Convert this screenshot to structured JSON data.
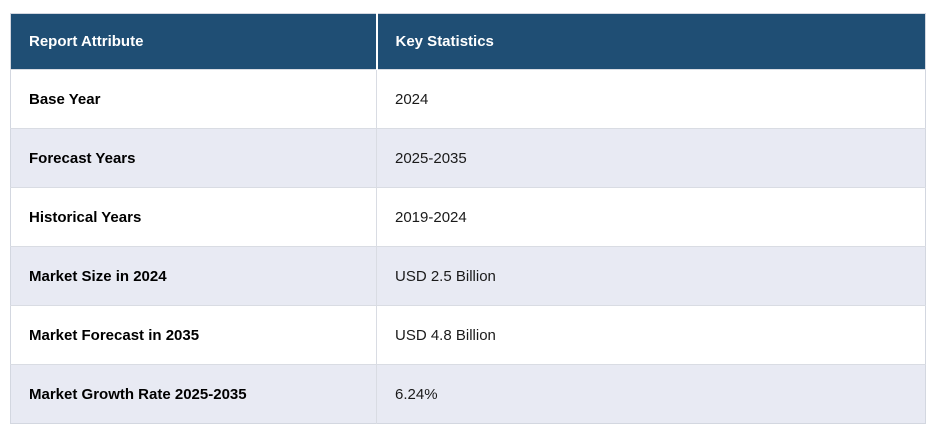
{
  "table": {
    "columns": [
      {
        "label": "Report Attribute"
      },
      {
        "label": "Key Statistics"
      }
    ],
    "rows": [
      {
        "attribute": "Base Year",
        "value": "2024"
      },
      {
        "attribute": "Forecast Years",
        "value": "2025-2035"
      },
      {
        "attribute": "Historical Years",
        "value": "2019-2024"
      },
      {
        "attribute": "Market Size in 2024",
        "value": "USD 2.5 Billion"
      },
      {
        "attribute": "Market Forecast in 2035",
        "value": "USD 4.8 Billion"
      },
      {
        "attribute": "Market Growth Rate 2025-2035",
        "value": "6.24%"
      }
    ],
    "colors": {
      "header_background": "#1F4E74",
      "header_text": "#FFFFFF",
      "alternate_row_background": "#E8EAF3",
      "row_background": "#FFFFFF",
      "border": "#D9DCE3",
      "body_text": "#000000"
    }
  }
}
